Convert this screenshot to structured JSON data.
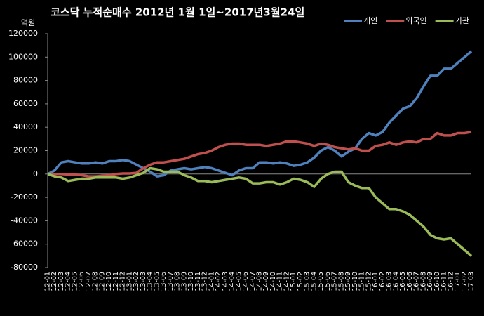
{
  "chart_data": {
    "type": "line",
    "title": "코스닥  누적순매수 2012년 1월 1일~2017년3월24일",
    "y_label": "억원",
    "categories": [
      "12-01",
      "12-02",
      "12-03",
      "12-04",
      "12-05",
      "12-06",
      "12-07",
      "12-08",
      "12-09",
      "12-10",
      "12-11",
      "12-12",
      "13-01",
      "13-02",
      "13-03",
      "13-04",
      "13-05",
      "13-06",
      "13-07",
      "13-08",
      "13-09",
      "13-10",
      "13-11",
      "13-12",
      "14-01",
      "14-02",
      "14-03",
      "14-04",
      "14-05",
      "14-06",
      "14-07",
      "14-08",
      "14-09",
      "14-10",
      "14-11",
      "14-12",
      "15-01",
      "15-02",
      "15-03",
      "15-04",
      "15-05",
      "15-06",
      "15-07",
      "15-08",
      "15-09",
      "15-10",
      "15-11",
      "15-12",
      "16-01",
      "16-02",
      "16-03",
      "16-04",
      "16-05",
      "16-06",
      "16-07",
      "16-08",
      "16-09",
      "16-10",
      "16-11",
      "16-12",
      "17-01",
      "17-02",
      "17-03"
    ],
    "series": [
      {
        "name": "개인",
        "color": "#4f81bd",
        "values": [
          0,
          3000,
          10000,
          11000,
          10000,
          9000,
          9000,
          10000,
          9000,
          11000,
          11000,
          12000,
          11000,
          8000,
          5000,
          2000,
          -2000,
          -1000,
          3000,
          4000,
          5000,
          4000,
          5000,
          6000,
          5000,
          3000,
          1000,
          -1000,
          3000,
          5000,
          5000,
          10000,
          10000,
          9000,
          10000,
          9000,
          7000,
          8000,
          10000,
          14000,
          20000,
          23000,
          20000,
          15000,
          19000,
          22000,
          30000,
          35000,
          33000,
          36000,
          44000,
          50000,
          56000,
          58000,
          65000,
          75000,
          84000,
          84000,
          90000,
          90000,
          95000,
          100000,
          105000
        ]
      },
      {
        "name": "외국인",
        "color": "#c0504d",
        "values": [
          0,
          0,
          0,
          -500,
          -500,
          -1000,
          -2000,
          -2000,
          -1500,
          -1000,
          0,
          500,
          500,
          1000,
          5000,
          8000,
          10000,
          10000,
          11000,
          12000,
          13000,
          15000,
          17000,
          18000,
          20000,
          23000,
          25000,
          26000,
          26000,
          25000,
          25000,
          25000,
          24000,
          25000,
          26000,
          28000,
          28000,
          27000,
          26000,
          24000,
          26000,
          25000,
          23000,
          22000,
          21000,
          22000,
          20000,
          20000,
          24000,
          25000,
          27000,
          25000,
          27000,
          28000,
          27000,
          30000,
          30000,
          35000,
          33000,
          33000,
          35000,
          35000,
          36000
        ]
      },
      {
        "name": "기관",
        "color": "#9bbb59",
        "values": [
          0,
          -2000,
          -3000,
          -6000,
          -5000,
          -4000,
          -4000,
          -3000,
          -3000,
          -3000,
          -3000,
          -4000,
          -3000,
          -1000,
          1000,
          5000,
          4000,
          2000,
          2000,
          2000,
          -1000,
          -3000,
          -6000,
          -6000,
          -7000,
          -6000,
          -5000,
          -4000,
          -3000,
          -4000,
          -8000,
          -8000,
          -7000,
          -7000,
          -9000,
          -7000,
          -4000,
          -5000,
          -7000,
          -11000,
          -4000,
          0,
          2000,
          2000,
          -7000,
          -10000,
          -12000,
          -12000,
          -20000,
          -25000,
          -30000,
          -30000,
          -32000,
          -35000,
          -40000,
          -45000,
          -52000,
          -55000,
          -56000,
          -55000,
          -60000,
          -65000,
          -70000
        ]
      }
    ],
    "ylim": [
      -80000,
      120000
    ],
    "yticks": [
      -80000,
      -60000,
      -40000,
      -20000,
      0,
      20000,
      40000,
      60000,
      80000,
      100000,
      120000
    ],
    "grid": false,
    "legend": "top-right"
  }
}
